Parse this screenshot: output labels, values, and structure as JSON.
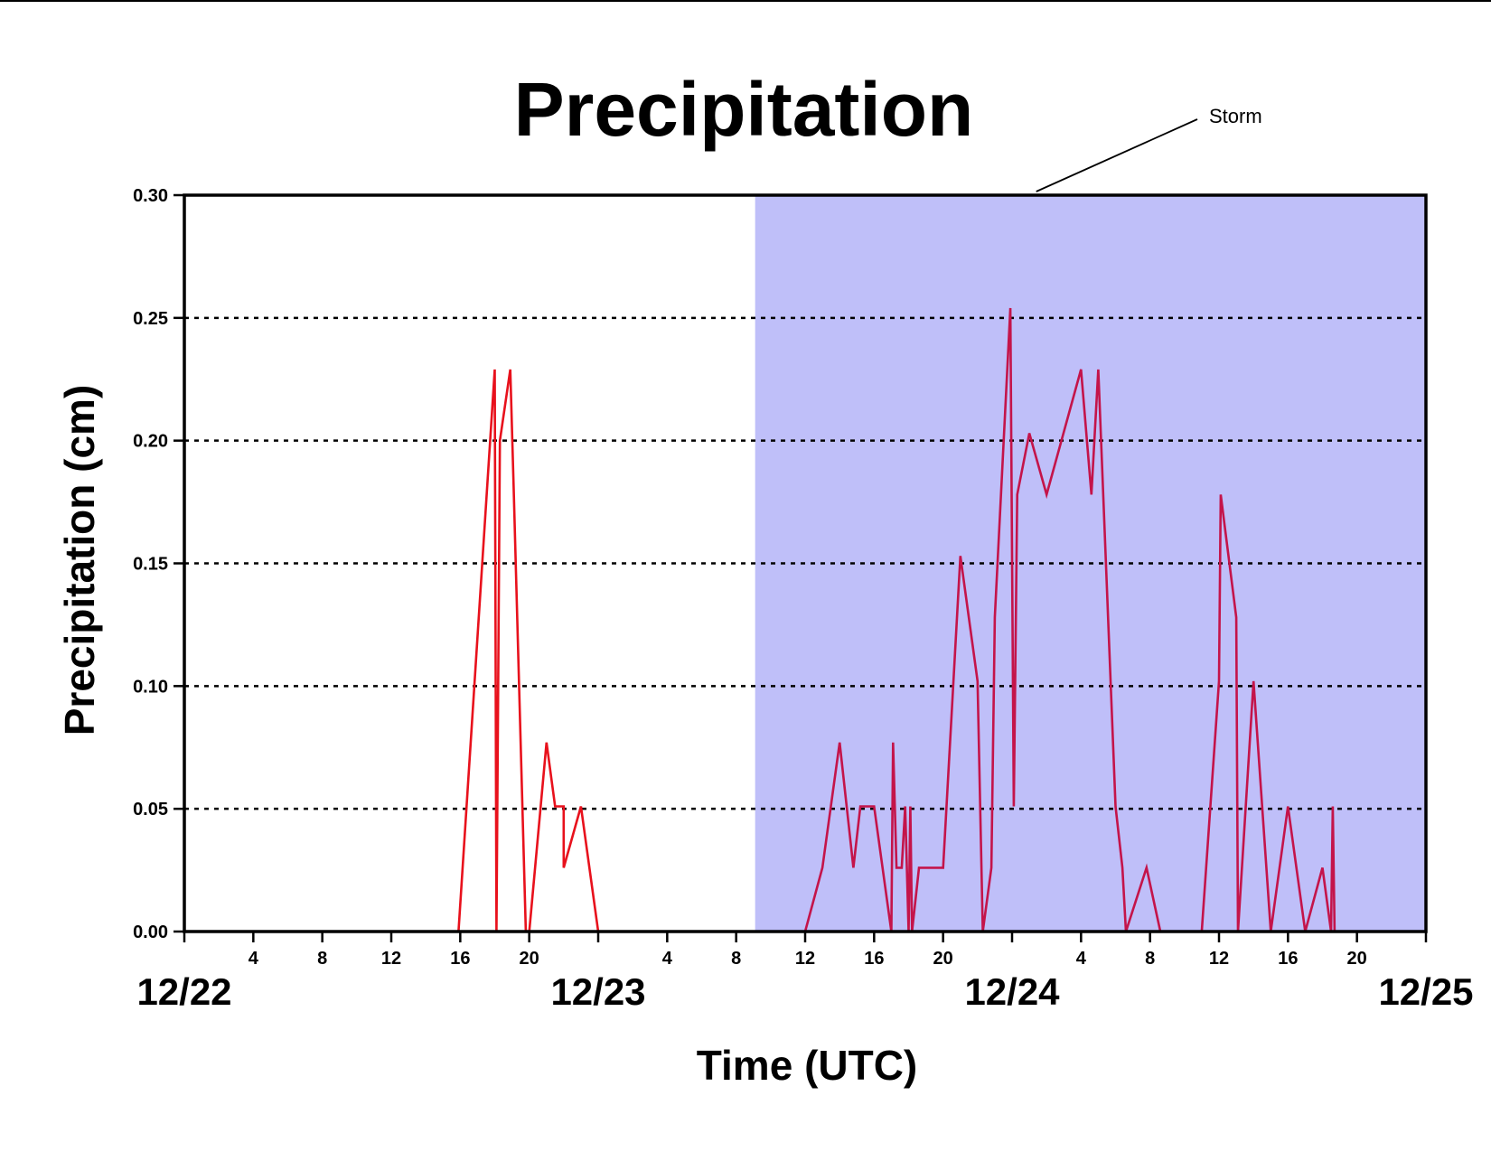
{
  "chart_data": {
    "type": "line",
    "title": "Precipitation",
    "xlabel": "Time (UTC)",
    "ylabel": "Precipitation (cm)",
    "ylim": [
      0,
      0.3
    ],
    "xlim": [
      "12/22 00",
      "12/25 00"
    ],
    "x_unit": "hours from 12/22 00 UTC",
    "y_ticks": [
      "0.00",
      "0.05",
      "0.10",
      "0.15",
      "0.20",
      "0.25",
      "0.30"
    ],
    "y_tick_values": [
      0,
      0.05,
      0.1,
      0.15,
      0.2,
      0.25,
      0.3
    ],
    "hour_ticks": [
      {
        "x": 4,
        "label": "4"
      },
      {
        "x": 8,
        "label": "8"
      },
      {
        "x": 12,
        "label": "12"
      },
      {
        "x": 16,
        "label": "16"
      },
      {
        "x": 20,
        "label": "20"
      },
      {
        "x": 28,
        "label": "4"
      },
      {
        "x": 32,
        "label": "8"
      },
      {
        "x": 36,
        "label": "12"
      },
      {
        "x": 40,
        "label": "16"
      },
      {
        "x": 44,
        "label": "20"
      },
      {
        "x": 52,
        "label": "4"
      },
      {
        "x": 56,
        "label": "8"
      },
      {
        "x": 60,
        "label": "12"
      },
      {
        "x": 64,
        "label": "16"
      },
      {
        "x": 68,
        "label": "20"
      }
    ],
    "date_ticks": [
      {
        "x": 0,
        "label": "12/22"
      },
      {
        "x": 24,
        "label": "12/23"
      },
      {
        "x": 48,
        "label": "12/24"
      },
      {
        "x": 72,
        "label": "12/25"
      }
    ],
    "grid": "horizontal dashed",
    "shaded_region": {
      "label": "Storm",
      "x_start": 33.1,
      "x_end": 72,
      "color": "#bfbff9"
    },
    "series": [
      {
        "color": "#e8111c",
        "points": [
          [
            0,
            0
          ],
          [
            15.9,
            0
          ],
          [
            18.0,
            0.229
          ],
          [
            18.1,
            0
          ],
          [
            18.3,
            0.2
          ],
          [
            18.9,
            0.229
          ],
          [
            19.1,
            0.18
          ],
          [
            19.8,
            0
          ],
          [
            20.0,
            0
          ],
          [
            21.0,
            0.077
          ],
          [
            21.5,
            0.051
          ],
          [
            22.0,
            0.051
          ],
          [
            22.0,
            0.026
          ],
          [
            23.0,
            0.051
          ],
          [
            24.0,
            0
          ],
          [
            33.1,
            0
          ]
        ]
      },
      {
        "color": "#c4144a",
        "points": [
          [
            33.1,
            0
          ],
          [
            36.0,
            0
          ],
          [
            37.0,
            0.026
          ],
          [
            38.0,
            0.077
          ],
          [
            38.8,
            0.026
          ],
          [
            39.2,
            0.051
          ],
          [
            40.0,
            0.051
          ],
          [
            41.0,
            0
          ],
          [
            41.1,
            0.077
          ],
          [
            41.3,
            0.026
          ],
          [
            41.6,
            0.026
          ],
          [
            41.8,
            0.051
          ],
          [
            42.0,
            0
          ],
          [
            42.1,
            0.051
          ],
          [
            42.2,
            0
          ],
          [
            42.6,
            0.026
          ],
          [
            44.0,
            0.026
          ],
          [
            45.0,
            0.153
          ],
          [
            46.0,
            0.102
          ],
          [
            46.3,
            0
          ],
          [
            46.8,
            0.026
          ],
          [
            47.0,
            0.128
          ],
          [
            47.9,
            0.254
          ],
          [
            48.1,
            0.051
          ],
          [
            48.3,
            0.178
          ],
          [
            49.0,
            0.203
          ],
          [
            50.0,
            0.178
          ],
          [
            52.0,
            0.229
          ],
          [
            52.6,
            0.178
          ],
          [
            53.0,
            0.229
          ],
          [
            54.0,
            0.051
          ],
          [
            54.4,
            0.026
          ],
          [
            54.6,
            0
          ],
          [
            55.8,
            0.026
          ],
          [
            56.6,
            0
          ],
          [
            59.0,
            0
          ],
          [
            60.0,
            0.102
          ],
          [
            60.1,
            0.178
          ],
          [
            61.0,
            0.128
          ],
          [
            61.1,
            0
          ],
          [
            62.0,
            0.102
          ],
          [
            63.0,
            0
          ],
          [
            64.0,
            0.051
          ],
          [
            65.0,
            0
          ],
          [
            66.0,
            0.026
          ],
          [
            66.5,
            0
          ],
          [
            66.6,
            0.051
          ],
          [
            66.7,
            0
          ],
          [
            72.0,
            0
          ]
        ]
      }
    ],
    "annotations": [
      {
        "text": "Storm"
      }
    ]
  }
}
